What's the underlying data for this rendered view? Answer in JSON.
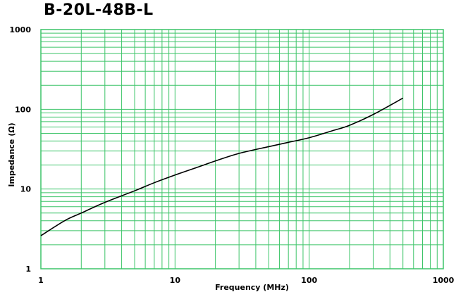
{
  "chart_data": {
    "type": "line",
    "title": "B-20L-48B-L",
    "xlabel": "Frequency (MHz)",
    "ylabel": "Impedance (Ω)",
    "x_scale": "log",
    "y_scale": "log",
    "xlim": [
      1,
      1000
    ],
    "ylim": [
      1,
      1000
    ],
    "x_tick_labels": [
      "1",
      "10",
      "100",
      "1000"
    ],
    "y_tick_labels": [
      "1",
      "10",
      "100",
      "1000"
    ],
    "grid": true,
    "colors": {
      "grid": "#3cc468",
      "line": "#000000"
    },
    "series": [
      {
        "x": [
          1,
          1.5,
          2,
          3,
          5,
          7,
          10,
          15,
          20,
          30,
          50,
          70,
          100,
          150,
          200,
          300,
          500
        ],
        "y": [
          2.6,
          4.0,
          5.0,
          6.8,
          9.5,
          12.0,
          15.0,
          19.0,
          22.5,
          28.0,
          34.0,
          38.5,
          44.0,
          54.0,
          63.0,
          86.0,
          138.0
        ]
      }
    ]
  }
}
